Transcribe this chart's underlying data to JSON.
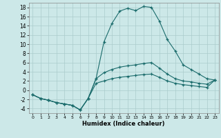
{
  "xlabel": "Humidex (Indice chaleur)",
  "bg_color": "#cce8e8",
  "grid_color": "#aacccc",
  "line_color": "#1a6b6b",
  "xlim": [
    -0.5,
    23.5
  ],
  "ylim": [
    -5,
    19
  ],
  "xticks": [
    0,
    1,
    2,
    3,
    4,
    5,
    6,
    7,
    8,
    9,
    10,
    11,
    12,
    13,
    14,
    15,
    16,
    17,
    18,
    19,
    20,
    21,
    22,
    23
  ],
  "yticks": [
    -4,
    -2,
    0,
    2,
    4,
    6,
    8,
    10,
    12,
    14,
    16,
    18
  ],
  "series": [
    {
      "x": [
        0,
        1,
        2,
        3,
        4,
        5,
        6,
        7,
        8,
        9,
        10,
        11,
        12,
        13,
        14,
        15,
        16,
        17,
        18,
        19,
        20,
        21,
        22,
        23
      ],
      "y": [
        -1,
        -1.8,
        -2.2,
        -2.7,
        -3.0,
        -3.3,
        -4.3,
        -1.8,
        2.5,
        10.5,
        14.5,
        17.2,
        17.8,
        17.3,
        18.2,
        18.0,
        15.0,
        11.0,
        8.5,
        5.5,
        4.5,
        3.5,
        2.5,
        2.2
      ]
    },
    {
      "x": [
        0,
        1,
        2,
        3,
        4,
        5,
        6,
        7,
        8,
        9,
        10,
        11,
        12,
        13,
        14,
        15,
        16,
        17,
        18,
        19,
        20,
        21,
        22,
        23
      ],
      "y": [
        -1,
        -1.8,
        -2.2,
        -2.7,
        -3.0,
        -3.3,
        -4.3,
        -1.8,
        2.5,
        3.8,
        4.5,
        5.0,
        5.3,
        5.5,
        5.8,
        6.0,
        4.8,
        3.5,
        2.5,
        2.0,
        1.8,
        1.5,
        1.3,
        2.2
      ]
    },
    {
      "x": [
        0,
        1,
        2,
        3,
        4,
        5,
        6,
        7,
        8,
        9,
        10,
        11,
        12,
        13,
        14,
        15,
        16,
        17,
        18,
        19,
        20,
        21,
        22,
        23
      ],
      "y": [
        -1,
        -1.8,
        -2.2,
        -2.7,
        -3.0,
        -3.3,
        -4.3,
        -1.8,
        1.5,
        2.0,
        2.5,
        2.8,
        3.0,
        3.2,
        3.4,
        3.5,
        2.8,
        2.0,
        1.5,
        1.2,
        1.0,
        0.8,
        0.6,
        2.2
      ]
    }
  ]
}
